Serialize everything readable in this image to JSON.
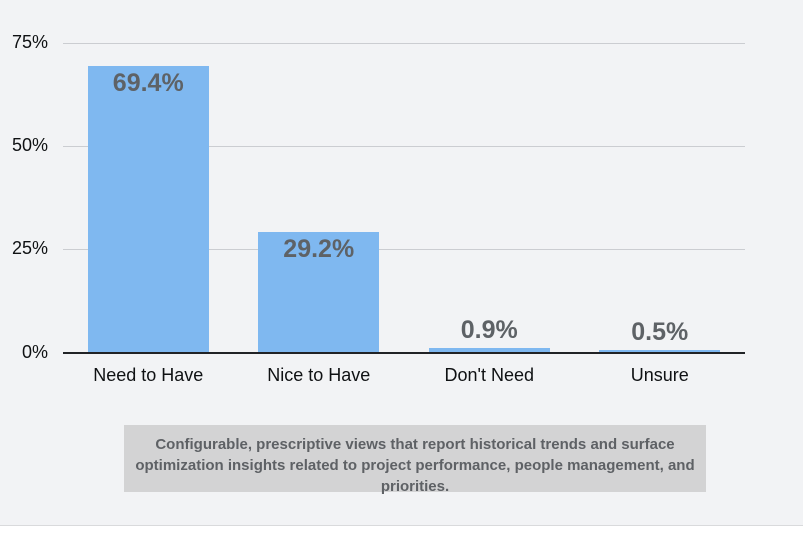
{
  "page": {
    "background_color": "#f2f3f5",
    "bottom_strip_color": "#ffffff"
  },
  "chart_data": {
    "type": "bar",
    "title": "",
    "xlabel": "",
    "ylabel": "",
    "categories": [
      "Need to Have",
      "Nice to Have",
      "Don't Need",
      "Unsure"
    ],
    "values": [
      69.4,
      29.2,
      0.9,
      0.5
    ],
    "value_labels": [
      "69.4%",
      "29.2%",
      "0.9%",
      "0.5%"
    ],
    "y_ticks": [
      {
        "value": 75,
        "label": "75%"
      },
      {
        "value": 50,
        "label": "50%"
      },
      {
        "value": 25,
        "label": "25%"
      },
      {
        "value": 0,
        "label": "0%"
      }
    ],
    "ylim": [
      0,
      75
    ],
    "grid": true,
    "legend": "none",
    "bar_color": "#7fb8f0",
    "value_label_color": "#5e6266",
    "axis_label_color": "#0f1113",
    "gridline_color": "#cbcdd1",
    "baseline_color": "#212326"
  },
  "caption": {
    "background": "#d3d3d4",
    "text_color": "#5e6165",
    "lines": [
      "Configurable, prescriptive views that report historical trends and surface",
      "optimization insights related to project performance, people management, and",
      "priorities."
    ]
  }
}
